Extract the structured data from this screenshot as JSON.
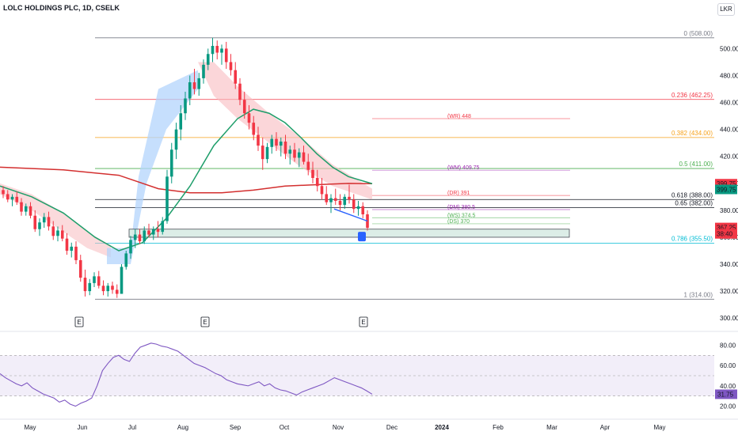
{
  "header": {
    "title": "LOLC HOLDINGS PLC, 1D, CSELK",
    "currency": "LKR"
  },
  "colors": {
    "up": "#089981",
    "down": "#f23645",
    "ema_green": "#1e9e6a",
    "ma_red": "#d32f2f",
    "rsi": "#7e57c2"
  },
  "chart_data": {
    "type": "candlestick",
    "price_axis": {
      "ticks": [
        "500.00",
        "480.00",
        "460.00",
        "440.00",
        "420.00",
        "400.00",
        "380.00",
        "360.00",
        "340.00",
        "320.00",
        "300.00"
      ],
      "range": [
        296,
        512
      ]
    },
    "time_axis": [
      "May",
      "Jun",
      "Jul",
      "Aug",
      "Sep",
      "Oct",
      "Nov",
      "Dec",
      "2024",
      "Feb",
      "Mar",
      "Apr",
      "May"
    ],
    "fib_levels": [
      {
        "ratio": "0",
        "label": "0 (508.00)",
        "price": 508,
        "color": "#787b86"
      },
      {
        "ratio": "0.236",
        "label": "0.236 (462.25)",
        "price": 462.25,
        "color": "#f23645"
      },
      {
        "ratio": "0.382",
        "label": "0.382 (434.00)",
        "price": 434,
        "color": "#f7a21b"
      },
      {
        "ratio": "0.5",
        "label": "0.5 (411.00)",
        "price": 411,
        "color": "#4caf50"
      },
      {
        "ratio": "0.618",
        "label": "0.618 (388.00)",
        "price": 388,
        "color": "#131722"
      },
      {
        "ratio": "0.65",
        "label": "0.65 (382.00)",
        "price": 382,
        "color": "#131722"
      },
      {
        "ratio": "0.786",
        "label": "0.786 (355.50)",
        "price": 355.5,
        "color": "#00bcd4"
      },
      {
        "ratio": "1",
        "label": "1 (314.00)",
        "price": 314,
        "color": "#787b86"
      }
    ],
    "pivot_levels": [
      {
        "label": "(WR)  448",
        "price": 448,
        "color": "#f23645"
      },
      {
        "label": "(WM)  409.75",
        "price": 409.75,
        "color": "#9c27b0"
      },
      {
        "label": "(DR)  391",
        "price": 391,
        "color": "#f23645"
      },
      {
        "label": "(DM)  380.5",
        "price": 380.5,
        "color": "#9c27b0"
      },
      {
        "label": "(WS)  374.5",
        "price": 374.5,
        "color": "#4caf50"
      },
      {
        "label": "(DS)  370",
        "price": 370,
        "color": "#4caf50"
      }
    ],
    "price_badges": [
      {
        "value": "399.75",
        "price": 399.75,
        "color": "#f23645"
      },
      {
        "value": "399.75",
        "price": 395.5,
        "color": "#089981"
      },
      {
        "value": "367.25",
        "price": 367.25,
        "color": "#f23645"
      },
      {
        "value": "38:40",
        "price": 362.5,
        "color": "#f23645"
      }
    ],
    "earnings_markers": [
      "E",
      "E",
      "E"
    ],
    "rsi": {
      "ticks": [
        "80.00",
        "60.00",
        "40.00",
        "20.00"
      ],
      "band": [
        30,
        70
      ],
      "last": "31.75"
    },
    "daily_bars": [
      {
        "o": 395,
        "h": 398,
        "l": 389,
        "c": 392
      },
      {
        "o": 392,
        "h": 395,
        "l": 386,
        "c": 388
      },
      {
        "o": 388,
        "h": 392,
        "l": 383,
        "c": 390
      },
      {
        "o": 390,
        "h": 394,
        "l": 384,
        "c": 386
      },
      {
        "o": 386,
        "h": 389,
        "l": 376,
        "c": 379
      },
      {
        "o": 379,
        "h": 385,
        "l": 376,
        "c": 383
      },
      {
        "o": 383,
        "h": 386,
        "l": 374,
        "c": 376
      },
      {
        "o": 376,
        "h": 380,
        "l": 364,
        "c": 366
      },
      {
        "o": 366,
        "h": 374,
        "l": 361,
        "c": 371
      },
      {
        "o": 371,
        "h": 378,
        "l": 367,
        "c": 375
      },
      {
        "o": 375,
        "h": 379,
        "l": 365,
        "c": 368
      },
      {
        "o": 368,
        "h": 372,
        "l": 358,
        "c": 361
      },
      {
        "o": 361,
        "h": 368,
        "l": 357,
        "c": 365
      },
      {
        "o": 365,
        "h": 369,
        "l": 357,
        "c": 359
      },
      {
        "o": 359,
        "h": 363,
        "l": 347,
        "c": 350
      },
      {
        "o": 350,
        "h": 356,
        "l": 345,
        "c": 353
      },
      {
        "o": 353,
        "h": 357,
        "l": 340,
        "c": 343
      },
      {
        "o": 343,
        "h": 347,
        "l": 327,
        "c": 330
      },
      {
        "o": 330,
        "h": 336,
        "l": 316,
        "c": 320
      },
      {
        "o": 320,
        "h": 329,
        "l": 317,
        "c": 326
      },
      {
        "o": 326,
        "h": 334,
        "l": 323,
        "c": 331
      },
      {
        "o": 331,
        "h": 335,
        "l": 322,
        "c": 324
      },
      {
        "o": 324,
        "h": 328,
        "l": 317,
        "c": 320
      },
      {
        "o": 320,
        "h": 326,
        "l": 316,
        "c": 324
      },
      {
        "o": 324,
        "h": 327,
        "l": 318,
        "c": 321
      },
      {
        "o": 321,
        "h": 325,
        "l": 315,
        "c": 318
      },
      {
        "o": 318,
        "h": 340,
        "l": 318,
        "c": 338
      },
      {
        "o": 338,
        "h": 350,
        "l": 336,
        "c": 348
      },
      {
        "o": 348,
        "h": 361,
        "l": 344,
        "c": 358
      },
      {
        "o": 358,
        "h": 366,
        "l": 352,
        "c": 362
      },
      {
        "o": 362,
        "h": 366,
        "l": 355,
        "c": 357
      },
      {
        "o": 357,
        "h": 368,
        "l": 355,
        "c": 365
      },
      {
        "o": 365,
        "h": 370,
        "l": 360,
        "c": 362
      },
      {
        "o": 362,
        "h": 368,
        "l": 358,
        "c": 366
      },
      {
        "o": 366,
        "h": 372,
        "l": 360,
        "c": 364
      },
      {
        "o": 364,
        "h": 375,
        "l": 362,
        "c": 372
      },
      {
        "o": 372,
        "h": 410,
        "l": 370,
        "c": 405
      },
      {
        "o": 405,
        "h": 430,
        "l": 400,
        "c": 425
      },
      {
        "o": 425,
        "h": 445,
        "l": 418,
        "c": 440
      },
      {
        "o": 440,
        "h": 458,
        "l": 432,
        "c": 452
      },
      {
        "o": 452,
        "h": 468,
        "l": 447,
        "c": 463
      },
      {
        "o": 463,
        "h": 480,
        "l": 458,
        "c": 475
      },
      {
        "o": 475,
        "h": 485,
        "l": 466,
        "c": 470
      },
      {
        "o": 470,
        "h": 482,
        "l": 465,
        "c": 478
      },
      {
        "o": 478,
        "h": 492,
        "l": 474,
        "c": 488
      },
      {
        "o": 488,
        "h": 500,
        "l": 484,
        "c": 496
      },
      {
        "o": 496,
        "h": 508,
        "l": 490,
        "c": 502
      },
      {
        "o": 502,
        "h": 506,
        "l": 492,
        "c": 497
      },
      {
        "o": 497,
        "h": 503,
        "l": 488,
        "c": 500
      },
      {
        "o": 500,
        "h": 505,
        "l": 485,
        "c": 490
      },
      {
        "o": 490,
        "h": 496,
        "l": 480,
        "c": 484
      },
      {
        "o": 484,
        "h": 490,
        "l": 470,
        "c": 474
      },
      {
        "o": 474,
        "h": 478,
        "l": 458,
        "c": 462
      },
      {
        "o": 462,
        "h": 468,
        "l": 448,
        "c": 452
      },
      {
        "o": 452,
        "h": 458,
        "l": 440,
        "c": 445
      },
      {
        "o": 445,
        "h": 450,
        "l": 432,
        "c": 436
      },
      {
        "o": 436,
        "h": 442,
        "l": 424,
        "c": 428
      },
      {
        "o": 428,
        "h": 434,
        "l": 410,
        "c": 418
      },
      {
        "o": 418,
        "h": 430,
        "l": 415,
        "c": 427
      },
      {
        "o": 427,
        "h": 436,
        "l": 422,
        "c": 433
      },
      {
        "o": 433,
        "h": 438,
        "l": 424,
        "c": 428
      },
      {
        "o": 428,
        "h": 434,
        "l": 420,
        "c": 431
      },
      {
        "o": 431,
        "h": 436,
        "l": 418,
        "c": 422
      },
      {
        "o": 422,
        "h": 428,
        "l": 414,
        "c": 425
      },
      {
        "o": 425,
        "h": 430,
        "l": 416,
        "c": 419
      },
      {
        "o": 419,
        "h": 426,
        "l": 412,
        "c": 423
      },
      {
        "o": 423,
        "h": 428,
        "l": 414,
        "c": 416
      },
      {
        "o": 416,
        "h": 422,
        "l": 406,
        "c": 410
      },
      {
        "o": 410,
        "h": 416,
        "l": 400,
        "c": 404
      },
      {
        "o": 404,
        "h": 410,
        "l": 394,
        "c": 398
      },
      {
        "o": 398,
        "h": 404,
        "l": 388,
        "c": 392
      },
      {
        "o": 392,
        "h": 398,
        "l": 384,
        "c": 386
      },
      {
        "o": 386,
        "h": 392,
        "l": 378,
        "c": 389
      },
      {
        "o": 389,
        "h": 396,
        "l": 384,
        "c": 387
      },
      {
        "o": 387,
        "h": 392,
        "l": 380,
        "c": 384
      },
      {
        "o": 384,
        "h": 392,
        "l": 381,
        "c": 390
      },
      {
        "o": 390,
        "h": 399,
        "l": 385,
        "c": 388
      },
      {
        "o": 388,
        "h": 392,
        "l": 378,
        "c": 381
      },
      {
        "o": 381,
        "h": 387,
        "l": 376,
        "c": 383
      },
      {
        "o": 383,
        "h": 386,
        "l": 374,
        "c": 377
      },
      {
        "o": 377,
        "h": 380,
        "l": 365,
        "c": 367
      }
    ],
    "ma_red": [
      {
        "x": 0,
        "p": 412
      },
      {
        "x": 80,
        "p": 410
      },
      {
        "x": 150,
        "p": 406
      },
      {
        "x": 200,
        "p": 396
      },
      {
        "x": 240,
        "p": 393
      },
      {
        "x": 280,
        "p": 393
      },
      {
        "x": 320,
        "p": 395
      },
      {
        "x": 360,
        "p": 398
      },
      {
        "x": 400,
        "p": 399
      },
      {
        "x": 440,
        "p": 400
      },
      {
        "x": 470,
        "p": 399.75
      }
    ],
    "ema_green": [
      {
        "x": 0,
        "p": 398
      },
      {
        "x": 40,
        "p": 390
      },
      {
        "x": 80,
        "p": 378
      },
      {
        "x": 120,
        "p": 360
      },
      {
        "x": 150,
        "p": 350
      },
      {
        "x": 180,
        "p": 356
      },
      {
        "x": 210,
        "p": 374
      },
      {
        "x": 240,
        "p": 398
      },
      {
        "x": 270,
        "p": 428
      },
      {
        "x": 300,
        "p": 448
      },
      {
        "x": 320,
        "p": 455
      },
      {
        "x": 340,
        "p": 452
      },
      {
        "x": 360,
        "p": 445
      },
      {
        "x": 380,
        "p": 434
      },
      {
        "x": 400,
        "p": 422
      },
      {
        "x": 420,
        "p": 412
      },
      {
        "x": 440,
        "p": 405
      },
      {
        "x": 470,
        "p": 399.75
      }
    ],
    "rsi_series": [
      52,
      48,
      45,
      42,
      40,
      43,
      38,
      35,
      32,
      30,
      28,
      24,
      26,
      22,
      20,
      23,
      25,
      28,
      40,
      55,
      62,
      68,
      70,
      66,
      64,
      72,
      78,
      80,
      82,
      81,
      79,
      78,
      76,
      74,
      70,
      66,
      62,
      60,
      58,
      55,
      52,
      50,
      46,
      44,
      42,
      41,
      40,
      42,
      44,
      40,
      42,
      38,
      36,
      35,
      33,
      31,
      34,
      36,
      38,
      40,
      42,
      45,
      48,
      46,
      44,
      42,
      40,
      38,
      35,
      31.75
    ],
    "supply_demand_zone": [
      360,
      366
    ]
  }
}
